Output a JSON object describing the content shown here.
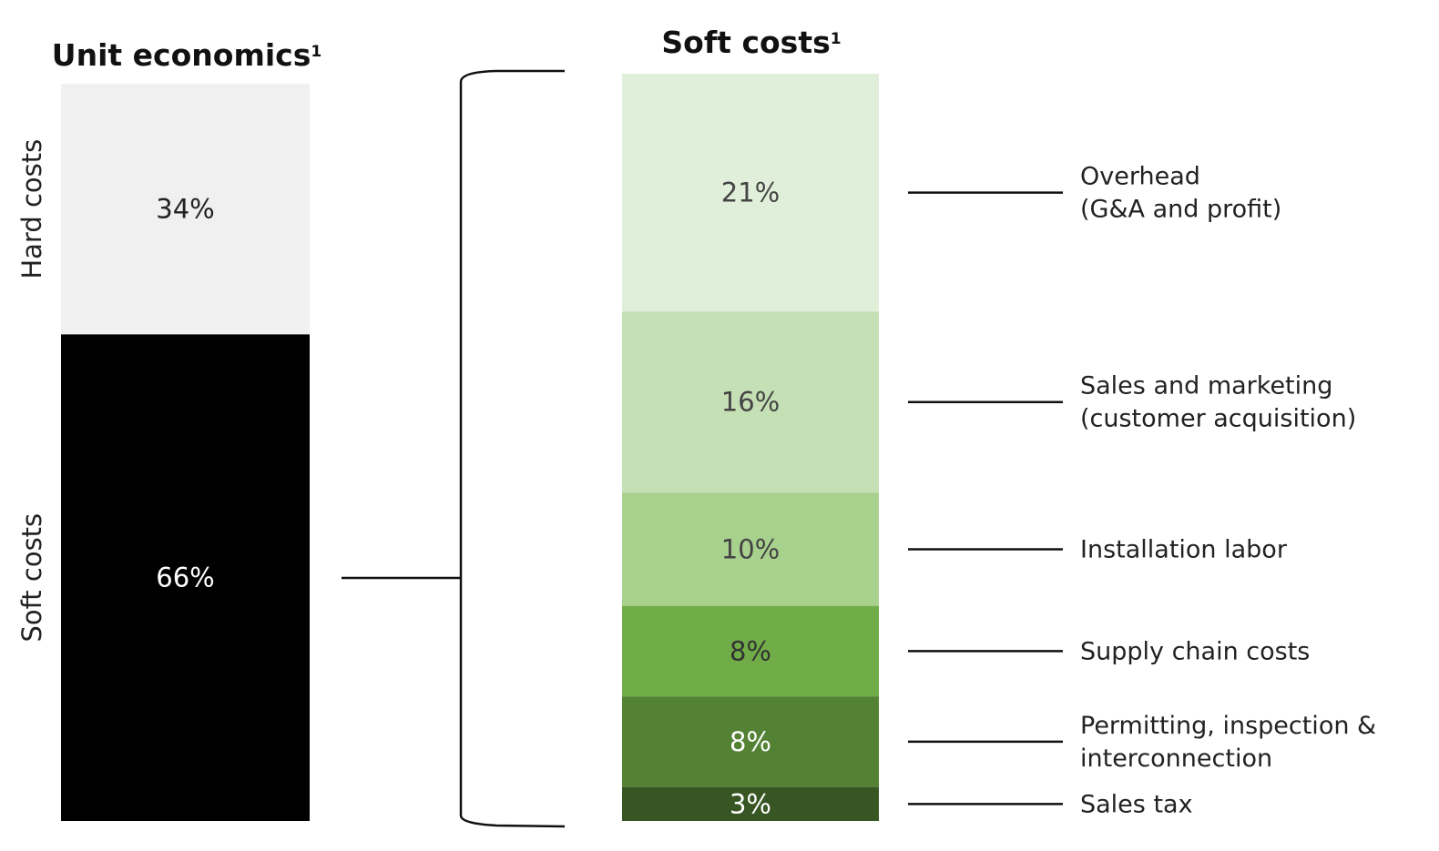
{
  "chart_data": [
    {
      "type": "bar",
      "stacked": true,
      "title": "Unit economics",
      "title_superscript": "1",
      "categories": [
        "Unit economics"
      ],
      "series": [
        {
          "name": "Hard costs",
          "values": [
            34
          ],
          "label": "34%",
          "color": "#f0f0f0",
          "label_color": "#222222"
        },
        {
          "name": "Soft costs",
          "values": [
            66
          ],
          "label": "66%",
          "color": "#000000",
          "label_color": "#ffffff"
        }
      ],
      "unit": "%"
    },
    {
      "type": "bar",
      "stacked": true,
      "title": "Soft costs",
      "title_superscript": "1",
      "categories": [
        "Soft costs"
      ],
      "series": [
        {
          "name": "Overhead\n(G&A and profit)",
          "values": [
            21
          ],
          "label": "21%",
          "color": "#e0efd9",
          "label_color": "#444444"
        },
        {
          "name": "Sales and marketing\n(customer acquisition)",
          "values": [
            16
          ],
          "label": "16%",
          "color": "#c4e0b4",
          "label_color": "#444444"
        },
        {
          "name": "Installation labor",
          "values": [
            10
          ],
          "label": "10%",
          "color": "#a8d18d",
          "label_color": "#444444"
        },
        {
          "name": "Supply chain costs",
          "values": [
            8
          ],
          "label": "8%",
          "color": "#70ac47",
          "label_color": "#333333"
        },
        {
          "name": "Permitting, inspection &\ninterconnection",
          "values": [
            8
          ],
          "label": "8%",
          "color": "#538234",
          "label_color": "#ffffff"
        },
        {
          "name": "Sales tax",
          "values": [
            3
          ],
          "label": "3%",
          "color": "#375623",
          "label_color": "#ffffff"
        }
      ],
      "unit": "%"
    }
  ]
}
